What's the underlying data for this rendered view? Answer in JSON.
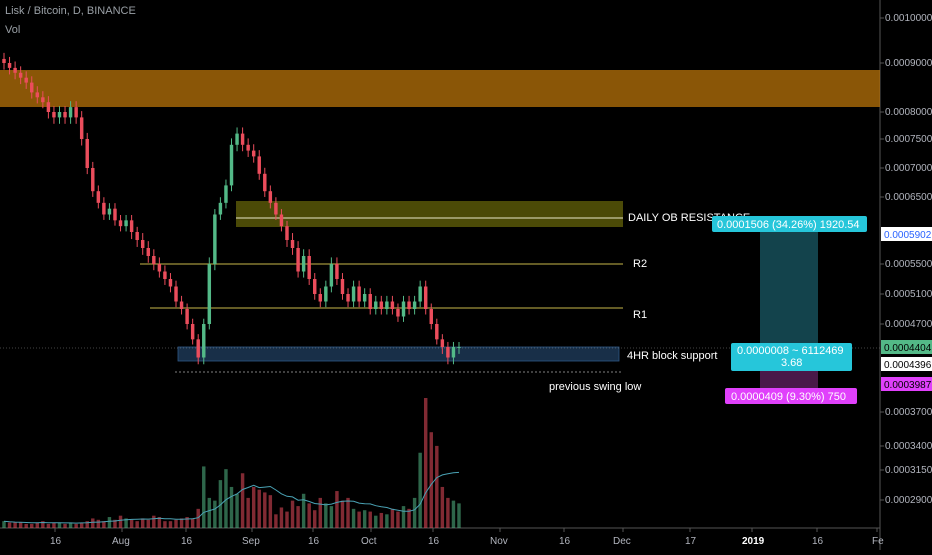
{
  "header": {
    "symbol": "Lisk / Bitcoin, D, BINANCE",
    "indicator": "Vol"
  },
  "colors": {
    "up": "#53b987",
    "down": "#eb4d5c",
    "ob_zone": "#b8730a",
    "resist_zone": "#6b6a0a",
    "support_zone": "#1f3b5a",
    "axis_text": "#b2b5be",
    "mag": "#e040fb",
    "cyan": "#26c6da",
    "volma": "#4aa3b5"
  },
  "chart_data": {
    "type": "candlestick",
    "x_ticks": [
      "16",
      "Aug",
      "16",
      "Sep",
      "16",
      "Oct",
      "16",
      "Nov",
      "16",
      "Dec",
      "17",
      "2019",
      "16",
      "Fe"
    ],
    "y_ticks": [
      "0.0010000",
      "0.0009000",
      "0.0008000",
      "0.0007500",
      "0.0007000",
      "0.0006500",
      "0.0005500",
      "0.0005100",
      "0.0004700",
      "0.0003700",
      "0.0003400",
      "0.0003150",
      "0.0002900"
    ],
    "price_tags": {
      "current": "0.0004404",
      "line": "0.0004396",
      "top_measure": "0.0005902",
      "bottom_measure": "0.0003987"
    },
    "annotations": {
      "daily_ob": "DAILY OB RESISTANCE",
      "r2": "R2",
      "r1": "R1",
      "support": "4HR block support",
      "swing": "previous swing low",
      "measure_top": "0.0001506 (34.26%) 1920.54",
      "measure_mid_1": "0.0000008 ~ 6112469",
      "measure_mid_2": "3.68",
      "measure_bottom": "0.0000409 (9.30%) 750"
    },
    "series_close": [
      0.0009,
      0.00089,
      0.00088,
      0.00087,
      0.00086,
      0.00084,
      0.00083,
      0.00082,
      0.0008,
      0.00079,
      0.0008,
      0.00079,
      0.00081,
      0.00079,
      0.00075,
      0.0007,
      0.00066,
      0.00064,
      0.00062,
      0.00063,
      0.00061,
      0.0006,
      0.00061,
      0.00059,
      0.00058,
      0.00057,
      0.00056,
      0.00055,
      0.00054,
      0.00053,
      0.00052,
      0.0005,
      0.00049,
      0.00047,
      0.00045,
      0.00043,
      0.00047,
      0.00055,
      0.00062,
      0.00064,
      0.00067,
      0.00074,
      0.00076,
      0.00074,
      0.00073,
      0.00072,
      0.00069,
      0.00066,
      0.00064,
      0.00062,
      0.0006,
      0.00058,
      0.00057,
      0.00054,
      0.00056,
      0.00053,
      0.00051,
      0.0005,
      0.00052,
      0.00055,
      0.00053,
      0.00051,
      0.0005,
      0.00052,
      0.0005,
      0.00051,
      0.00049,
      0.0005,
      0.00049,
      0.0005,
      0.00049,
      0.00048,
      0.0005,
      0.00049,
      0.0005,
      0.00052,
      0.00049,
      0.00047,
      0.00045,
      0.00044,
      0.00043,
      0.00044,
      0.00044
    ],
    "volume": [
      5,
      4,
      4,
      4,
      3,
      3,
      4,
      5,
      3,
      4,
      4,
      3,
      4,
      3,
      4,
      5,
      7,
      6,
      5,
      8,
      6,
      9,
      7,
      6,
      5,
      7,
      6,
      9,
      8,
      5,
      5,
      6,
      7,
      8,
      7,
      14,
      45,
      22,
      20,
      35,
      43,
      30,
      25,
      40,
      22,
      30,
      28,
      26,
      24,
      10,
      15,
      12,
      20,
      16,
      25,
      18,
      13,
      22,
      18,
      16,
      27,
      20,
      22,
      14,
      12,
      13,
      12,
      9,
      11,
      10,
      14,
      12,
      16,
      14,
      22,
      55,
      95,
      70,
      60,
      30,
      22,
      20,
      18
    ]
  }
}
